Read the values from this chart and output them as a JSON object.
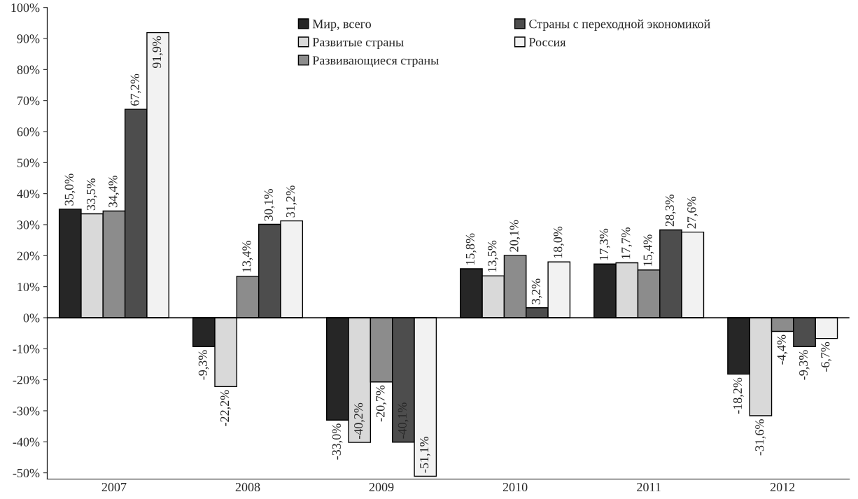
{
  "chart_data": {
    "type": "bar",
    "categories": [
      "2007",
      "2008",
      "2009",
      "2010",
      "2011",
      "2012"
    ],
    "series": [
      {
        "name": "Мир, всего",
        "color": "#262626",
        "values": [
          35.0,
          -9.3,
          -33.0,
          15.8,
          17.3,
          -18.2
        ],
        "value_labels": [
          "35,0%",
          "-9,3%",
          "-33,0%",
          "15,8%",
          "17,3%",
          "-18,2%"
        ]
      },
      {
        "name": "Развитые страны",
        "color": "#d9d9d9",
        "values": [
          33.5,
          -22.2,
          -40.2,
          13.5,
          17.7,
          -31.6
        ],
        "value_labels": [
          "33,5%",
          "-22,2%",
          "-40,2%",
          "13,5%",
          "17,7%",
          "-31,6%"
        ]
      },
      {
        "name": "Развивающиеся страны",
        "color": "#8c8c8c",
        "values": [
          34.4,
          13.4,
          -20.7,
          20.1,
          15.4,
          -4.4
        ],
        "value_labels": [
          "34,4%",
          "13,4%",
          "-20,7%",
          "20,1%",
          "15,4%",
          "-4,4%"
        ]
      },
      {
        "name": "Страны с переходной экономикой",
        "color": "#4d4d4d",
        "values": [
          67.2,
          30.1,
          -40.1,
          3.2,
          28.3,
          -9.3
        ],
        "value_labels": [
          "67,2%",
          "30,1%",
          "-40,1%",
          "3,2%",
          "28,3%",
          "-9,3%"
        ]
      },
      {
        "name": "Россия",
        "color": "#f2f2f2",
        "values": [
          91.9,
          31.2,
          -51.1,
          18.0,
          27.6,
          -6.7
        ],
        "value_labels": [
          "91,9%",
          "31,2%",
          "-51,1%",
          "18,0%",
          "27,6%",
          "-6,7%"
        ]
      }
    ],
    "ylim": [
      -52,
      100
    ],
    "yticks": [
      {
        "value": -50,
        "label": "-50%"
      },
      {
        "value": -40,
        "label": "-40%"
      },
      {
        "value": -30,
        "label": "-30%"
      },
      {
        "value": -20,
        "label": "-20%"
      },
      {
        "value": -10,
        "label": "-10%"
      },
      {
        "value": 0,
        "label": "0%"
      },
      {
        "value": 10,
        "label": "10%"
      },
      {
        "value": 20,
        "label": "20%"
      },
      {
        "value": 30,
        "label": "30%"
      },
      {
        "value": 40,
        "label": "40%"
      },
      {
        "value": 50,
        "label": "50%"
      },
      {
        "value": 60,
        "label": "60%"
      },
      {
        "value": 70,
        "label": "70%"
      },
      {
        "value": 80,
        "label": "80%"
      },
      {
        "value": 90,
        "label": "90%"
      },
      {
        "value": 100,
        "label": "100%"
      }
    ],
    "ref_lines": [
      {
        "axis": "y",
        "value": 0,
        "color": "#000000"
      }
    ],
    "grid": false,
    "legend": "top"
  }
}
